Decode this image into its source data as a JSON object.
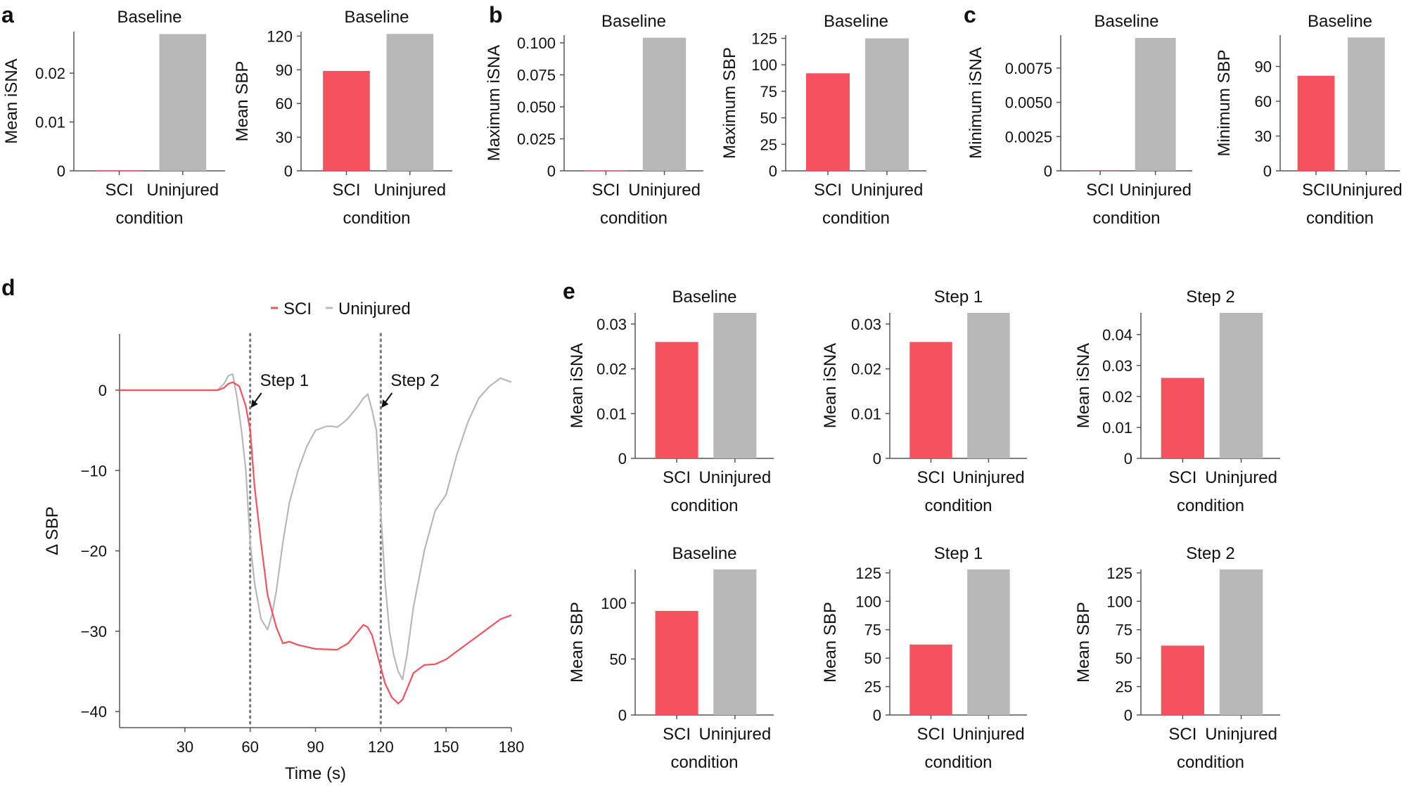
{
  "colors": {
    "sci": "#f5515f",
    "uninjured": "#b8b8b8",
    "axis": "#555555",
    "dotted": "#777777"
  },
  "panel_labels": {
    "a": "a",
    "b": "b",
    "c": "c",
    "d": "d",
    "e": "e"
  },
  "chart_data": [
    {
      "id": "a1",
      "type": "bar",
      "title": "Baseline",
      "ylabel": "Mean iSNA",
      "xlabel": "condition",
      "categories": [
        "SCI",
        "Uninjured"
      ],
      "values": [
        0.0001,
        0.028
      ],
      "ylim": [
        0,
        0.0285
      ],
      "ticks": [
        0,
        0.01,
        0.02
      ],
      "tick_labels": [
        "0",
        "0.01",
        "0.02"
      ]
    },
    {
      "id": "a2",
      "type": "bar",
      "title": "Baseline",
      "ylabel": "Mean SBP",
      "xlabel": "condition",
      "categories": [
        "SCI",
        "Uninjured"
      ],
      "values": [
        89,
        122
      ],
      "ylim": [
        0,
        124
      ],
      "ticks": [
        0,
        30,
        60,
        90,
        120
      ],
      "tick_labels": [
        "0",
        "30",
        "60",
        "90",
        "120"
      ]
    },
    {
      "id": "b1",
      "type": "bar",
      "title": "Baseline",
      "ylabel": "Maximum iSNA",
      "xlabel": "condition",
      "categories": [
        "SCI",
        "Uninjured"
      ],
      "values": [
        0.0003,
        0.104
      ],
      "ylim": [
        0,
        0.106
      ],
      "ticks": [
        0,
        0.025,
        0.05,
        0.075,
        0.1
      ],
      "tick_labels": [
        "0",
        "0.025",
        "0.050",
        "0.075",
        "0.100"
      ]
    },
    {
      "id": "b2",
      "type": "bar",
      "title": "Baseline",
      "ylabel": "Maximum SBP",
      "xlabel": "condition",
      "categories": [
        "SCI",
        "Uninjured"
      ],
      "values": [
        92,
        125
      ],
      "ylim": [
        0,
        128
      ],
      "ticks": [
        0,
        25,
        50,
        75,
        100,
        125
      ],
      "tick_labels": [
        "0",
        "25",
        "50",
        "75",
        "100",
        "125"
      ]
    },
    {
      "id": "c1",
      "type": "bar",
      "title": "Baseline",
      "ylabel": "Minimum iSNA",
      "xlabel": "condition",
      "categories": [
        "SCI",
        "Uninjured"
      ],
      "values": [
        1e-05,
        0.0097
      ],
      "ylim": [
        0,
        0.0099
      ],
      "ticks": [
        0,
        0.0025,
        0.005,
        0.0075
      ],
      "tick_labels": [
        "0",
        "0.0025",
        "0.0050",
        "0.0075"
      ]
    },
    {
      "id": "c2",
      "type": "bar",
      "title": "Baseline",
      "ylabel": "Minimum SBP",
      "xlabel": "condition",
      "categories": [
        "SCI",
        "Uninjured"
      ],
      "values": [
        82,
        115
      ],
      "ylim": [
        0,
        117
      ],
      "ticks": [
        0,
        30,
        60,
        90
      ],
      "tick_labels": [
        "0",
        "30",
        "60",
        "90"
      ]
    },
    {
      "id": "d",
      "type": "line",
      "xlabel": "Time (s)",
      "ylabel": "Δ SBP",
      "xlim": [
        0,
        180
      ],
      "ylim": [
        -42,
        7
      ],
      "xticks": [
        30,
        60,
        90,
        120,
        150,
        180
      ],
      "yticks": [
        0,
        -10,
        -20,
        -30,
        -40
      ],
      "ytick_labels": [
        "0",
        "−10",
        "−20",
        "−30",
        "−40"
      ],
      "vlines": [
        60,
        120
      ],
      "annotations": [
        {
          "text": "Step 1",
          "x": 60,
          "y": 0
        },
        {
          "text": "Step 2",
          "x": 120,
          "y": 0
        }
      ],
      "legend": [
        "SCI",
        "Uninjured"
      ],
      "series": [
        {
          "name": "SCI",
          "x": [
            0,
            45,
            48,
            50,
            52,
            55,
            58,
            60,
            62,
            65,
            68,
            72,
            75,
            78,
            82,
            90,
            100,
            105,
            108,
            112,
            114,
            116,
            118,
            120,
            122,
            125,
            128,
            130,
            132,
            135,
            140,
            145,
            150,
            155,
            160,
            165,
            170,
            175,
            180
          ],
          "y": [
            0,
            0,
            0.3,
            0.8,
            1.0,
            0.5,
            -2.0,
            -5.0,
            -12,
            -19,
            -25.5,
            -29.5,
            -31.5,
            -31.3,
            -31.7,
            -32.2,
            -32.3,
            -31.5,
            -30.5,
            -29.2,
            -29.5,
            -30.5,
            -32.5,
            -34.5,
            -36.5,
            -38.2,
            -39.0,
            -38.5,
            -37.2,
            -35.2,
            -34.2,
            -34.1,
            -33.5,
            -32.5,
            -31.5,
            -30.5,
            -29.5,
            -28.5,
            -28.0
          ]
        },
        {
          "name": "Uninjured",
          "x": [
            0,
            45,
            48,
            50,
            52,
            54,
            56,
            58,
            60,
            62,
            65,
            68,
            70,
            72,
            75,
            78,
            82,
            86,
            90,
            95,
            98,
            100,
            103,
            105,
            108,
            110,
            112,
            114,
            116,
            118,
            120,
            122,
            124,
            126,
            128,
            130,
            132,
            135,
            140,
            145,
            150,
            155,
            160,
            165,
            170,
            175,
            178,
            180
          ],
          "y": [
            0,
            0,
            0.8,
            1.8,
            2.0,
            -1.0,
            -5.0,
            -10.0,
            -19.0,
            -24.0,
            -28.5,
            -29.8,
            -28.0,
            -25.0,
            -19.0,
            -14.0,
            -10.0,
            -7.0,
            -5.0,
            -4.5,
            -4.5,
            -4.6,
            -4.0,
            -3.5,
            -2.5,
            -1.8,
            -1.0,
            -0.5,
            -2.5,
            -5.0,
            -15.0,
            -24.0,
            -30.0,
            -33.0,
            -35.0,
            -36.0,
            -33.0,
            -27.0,
            -20.0,
            -15.0,
            -13.0,
            -8.0,
            -4.0,
            -1.0,
            0.5,
            1.5,
            1.2,
            1.0
          ]
        }
      ]
    },
    {
      "id": "e1",
      "type": "bar",
      "title": "Baseline",
      "ylabel": "Mean iSNA",
      "xlabel": "condition",
      "categories": [
        "SCI",
        "Uninjured"
      ],
      "values": [
        0.026,
        0.0325
      ],
      "ylim": [
        0,
        0.0325
      ],
      "ticks": [
        0,
        0.01,
        0.02,
        0.03
      ],
      "tick_labels": [
        "0",
        "0.01",
        "0.02",
        "0.03"
      ]
    },
    {
      "id": "e2",
      "type": "bar",
      "title": "Step 1",
      "ylabel": "Mean iSNA",
      "xlabel": "condition",
      "categories": [
        "SCI",
        "Uninjured"
      ],
      "values": [
        0.026,
        0.0325
      ],
      "ylim": [
        0,
        0.0325
      ],
      "ticks": [
        0,
        0.01,
        0.02,
        0.03
      ],
      "tick_labels": [
        "0",
        "0.01",
        "0.02",
        "0.03"
      ]
    },
    {
      "id": "e3",
      "type": "bar",
      "title": "Step 2",
      "ylabel": "Mean iSNA",
      "xlabel": "condition",
      "categories": [
        "SCI",
        "Uninjured"
      ],
      "values": [
        0.026,
        0.047
      ],
      "ylim": [
        0,
        0.047
      ],
      "ticks": [
        0,
        0.01,
        0.02,
        0.03,
        0.04
      ],
      "tick_labels": [
        "0",
        "0.01",
        "0.02",
        "0.03",
        "0.04"
      ]
    },
    {
      "id": "e4",
      "type": "bar",
      "title": "Baseline",
      "ylabel": "Mean SBP",
      "xlabel": "condition",
      "categories": [
        "SCI",
        "Uninjured"
      ],
      "values": [
        93,
        130
      ],
      "ylim": [
        0,
        130
      ],
      "ticks": [
        0,
        50,
        100
      ],
      "tick_labels": [
        "0",
        "50",
        "100"
      ]
    },
    {
      "id": "e5",
      "type": "bar",
      "title": "Step 1",
      "ylabel": "Mean SBP",
      "xlabel": "condition",
      "categories": [
        "SCI",
        "Uninjured"
      ],
      "values": [
        62,
        128
      ],
      "ylim": [
        0,
        128
      ],
      "ticks": [
        0,
        25,
        50,
        75,
        100,
        125
      ],
      "tick_labels": [
        "0",
        "25",
        "50",
        "75",
        "100",
        "125"
      ]
    },
    {
      "id": "e6",
      "type": "bar",
      "title": "Step 2",
      "ylabel": "Mean SBP",
      "xlabel": "condition",
      "categories": [
        "SCI",
        "Uninjured"
      ],
      "values": [
        61,
        128
      ],
      "ylim": [
        0,
        128
      ],
      "ticks": [
        0,
        25,
        50,
        75,
        100,
        125
      ],
      "tick_labels": [
        "0",
        "25",
        "50",
        "75",
        "100",
        "125"
      ]
    }
  ]
}
